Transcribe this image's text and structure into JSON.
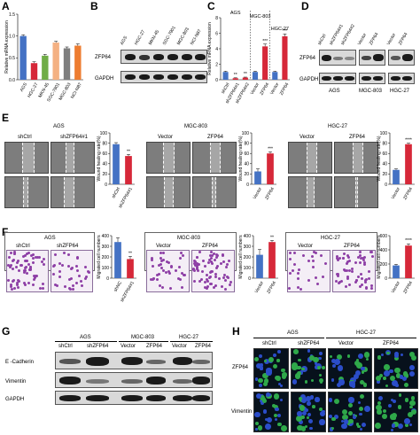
{
  "panels": {
    "A": {
      "label": "A",
      "ylabel": "Relative mRNA expression",
      "cells": [
        "AGS",
        "HGC-27",
        "MKN-45",
        "SGC-7901",
        "MGC-803",
        "NCI-N87"
      ]
    },
    "B": {
      "label": "B",
      "lanes": [
        "AGS",
        "HGC-27",
        "MKN-45",
        "SGC-7901",
        "MGC-803",
        "NCI-N87"
      ],
      "rows": [
        "ZFP64",
        "GAPDH"
      ]
    },
    "C": {
      "label": "C",
      "ylabel": "Relative mRNA expression",
      "groups": [
        "AGS",
        "MGC-803",
        "HGC-27"
      ],
      "bars": [
        "shCtrl",
        "shZFP64#1",
        "shZFP64#2",
        "Vector",
        "ZFP64",
        "Vector",
        "ZFP64"
      ],
      "sig": [
        "**",
        "**",
        "***",
        "***"
      ]
    },
    "D": {
      "label": "D",
      "lanes": [
        "shCtrl",
        "shZFP64#1",
        "shZFP64#2",
        "Vector",
        "ZFP64",
        "Vector",
        "ZFP64"
      ],
      "rows": [
        "ZFP64",
        "GAPDH"
      ],
      "groups": [
        "AGS",
        "MGC-803",
        "HGC-27"
      ]
    },
    "E": {
      "label": "E",
      "groups": [
        "AGS",
        "MGC-803",
        "HGC-27"
      ],
      "cols": [
        "shCtrl",
        "shZFP64#1",
        "Vector",
        "ZFP64",
        "Vector",
        "ZFP64"
      ],
      "ylabel": "Wound healing rate(%)",
      "x1": [
        "shCtrl",
        "shZFP64#1"
      ],
      "x2": [
        "Vector",
        "ZFP64"
      ],
      "x3": [
        "Vector",
        "ZFP64"
      ],
      "sig": [
        "**",
        "***",
        "****"
      ]
    },
    "F": {
      "label": "F",
      "groups": [
        "AGS",
        "MGC-803",
        "HGC-27"
      ],
      "cols": [
        "shCtrl",
        "shZFP64",
        "Vector",
        "ZFP64",
        "Vector",
        "ZFP64"
      ],
      "ylabel": "Migrated cell numbers",
      "x1": [
        "shNC",
        "shZFP64#1"
      ],
      "x2": [
        "Vector",
        "ZFP64"
      ],
      "x3": [
        "Vector",
        "ZFP64"
      ],
      "sig": [
        "**",
        "**",
        "****"
      ]
    },
    "G": {
      "label": "G",
      "groups": [
        "AGS",
        "MGC-803",
        "HGC-27"
      ],
      "lanes": [
        "shCtrl",
        "shZFP64",
        "Vector",
        "ZFP64",
        "Vector",
        "ZFP64"
      ],
      "rows": [
        "E -Cadherin",
        "Vimentin",
        "GAPDH"
      ]
    },
    "H": {
      "label": "H",
      "groups": [
        "AGS",
        "HGC-27"
      ],
      "cols": [
        "shCtrl",
        "shZFP64",
        "Vector",
        "ZFP64"
      ],
      "rows": [
        "ZFP64",
        "Vimentin"
      ]
    }
  },
  "chart_data": [
    {
      "type": "bar",
      "panel": "A",
      "categories": [
        "AGS",
        "HGC-27",
        "MKN-45",
        "SGC-7901",
        "MGC-803",
        "NCI-N87"
      ],
      "values": [
        1.0,
        0.38,
        0.55,
        0.85,
        0.72,
        0.78
      ],
      "errors": [
        0.03,
        0.03,
        0.03,
        0.03,
        0.03,
        0.04
      ],
      "colors": [
        "#4472c4",
        "#d62839",
        "#70ad47",
        "#f4b183",
        "#7f7f7f",
        "#ed7d31"
      ],
      "ylim": [
        0.0,
        1.5
      ],
      "yticks": [
        "0.0",
        "0.5",
        "1.0",
        "1.5"
      ],
      "ylabel": "Relative mRNA expression"
    },
    {
      "type": "bar",
      "panel": "C",
      "categories": [
        "shCtrl",
        "shZFP64#1",
        "shZFP64#2",
        "Vector",
        "ZFP64",
        "Vector",
        "ZFP64"
      ],
      "values": [
        1.0,
        0.2,
        0.28,
        1.0,
        4.3,
        1.0,
        5.6
      ],
      "errors": [
        0.1,
        0.05,
        0.06,
        0.1,
        0.3,
        0.1,
        0.3
      ],
      "colors": [
        "#4472c4",
        "#d62839",
        "#d62839",
        "#4472c4",
        "#d62839",
        "#4472c4",
        "#d62839"
      ],
      "ylim": [
        0,
        8
      ],
      "yticks": [
        "0",
        "2",
        "4",
        "6",
        "8"
      ],
      "ylabel": "Relative mRNA expression",
      "sig": [
        "",
        "**",
        "**",
        "",
        "***",
        "",
        "***"
      ]
    },
    {
      "type": "bar",
      "panel": "E1",
      "categories": [
        "shCtrl",
        "shZFP64#1"
      ],
      "values": [
        78,
        55
      ],
      "errors": [
        3,
        3
      ],
      "colors": [
        "#4472c4",
        "#d62839"
      ],
      "ylim": [
        0,
        100
      ],
      "yticks": [
        "0",
        "20",
        "40",
        "60",
        "80",
        "100"
      ],
      "ylabel": "Wound healing rate(%)",
      "sig": [
        "",
        "**"
      ]
    },
    {
      "type": "bar",
      "panel": "E2",
      "categories": [
        "Vector",
        "ZFP64"
      ],
      "values": [
        25,
        60
      ],
      "errors": [
        5,
        3
      ],
      "colors": [
        "#4472c4",
        "#d62839"
      ],
      "ylim": [
        0,
        100
      ],
      "yticks": [
        "0",
        "20",
        "40",
        "60",
        "80",
        "100"
      ],
      "ylabel": "Wound healing rate(%)",
      "sig": [
        "",
        "***"
      ]
    },
    {
      "type": "bar",
      "panel": "E3",
      "categories": [
        "Vector",
        "ZFP64"
      ],
      "values": [
        28,
        78
      ],
      "errors": [
        2,
        2
      ],
      "colors": [
        "#4472c4",
        "#d62839"
      ],
      "ylim": [
        0,
        100
      ],
      "yticks": [
        "0",
        "20",
        "40",
        "60",
        "80",
        "100"
      ],
      "ylabel": "Wound healing rate(%)",
      "sig": [
        "",
        "****"
      ]
    },
    {
      "type": "bar",
      "panel": "F1",
      "categories": [
        "shNC",
        "shZFP64#1"
      ],
      "values": [
        340,
        180
      ],
      "errors": [
        40,
        25
      ],
      "colors": [
        "#4472c4",
        "#d62839"
      ],
      "ylim": [
        0,
        400
      ],
      "yticks": [
        "0",
        "100",
        "200",
        "300",
        "400"
      ],
      "ylabel": "Migrated cell numbers",
      "sig": [
        "",
        "**"
      ]
    },
    {
      "type": "bar",
      "panel": "F2",
      "categories": [
        "Vector",
        "ZFP64"
      ],
      "values": [
        220,
        340
      ],
      "errors": [
        50,
        15
      ],
      "colors": [
        "#4472c4",
        "#d62839"
      ],
      "ylim": [
        0,
        400
      ],
      "yticks": [
        "0",
        "100",
        "200",
        "300",
        "400"
      ],
      "ylabel": "Migrated cell numbers",
      "sig": [
        "",
        "**"
      ]
    },
    {
      "type": "bar",
      "panel": "F3",
      "categories": [
        "Vector",
        "ZFP64"
      ],
      "values": [
        180,
        460
      ],
      "errors": [
        15,
        25
      ],
      "colors": [
        "#4472c4",
        "#d62839"
      ],
      "ylim": [
        0,
        600
      ],
      "yticks": [
        "0",
        "200",
        "400",
        "600"
      ],
      "ylabel": "Migrated cell numbers",
      "sig": [
        "",
        "****"
      ]
    }
  ]
}
